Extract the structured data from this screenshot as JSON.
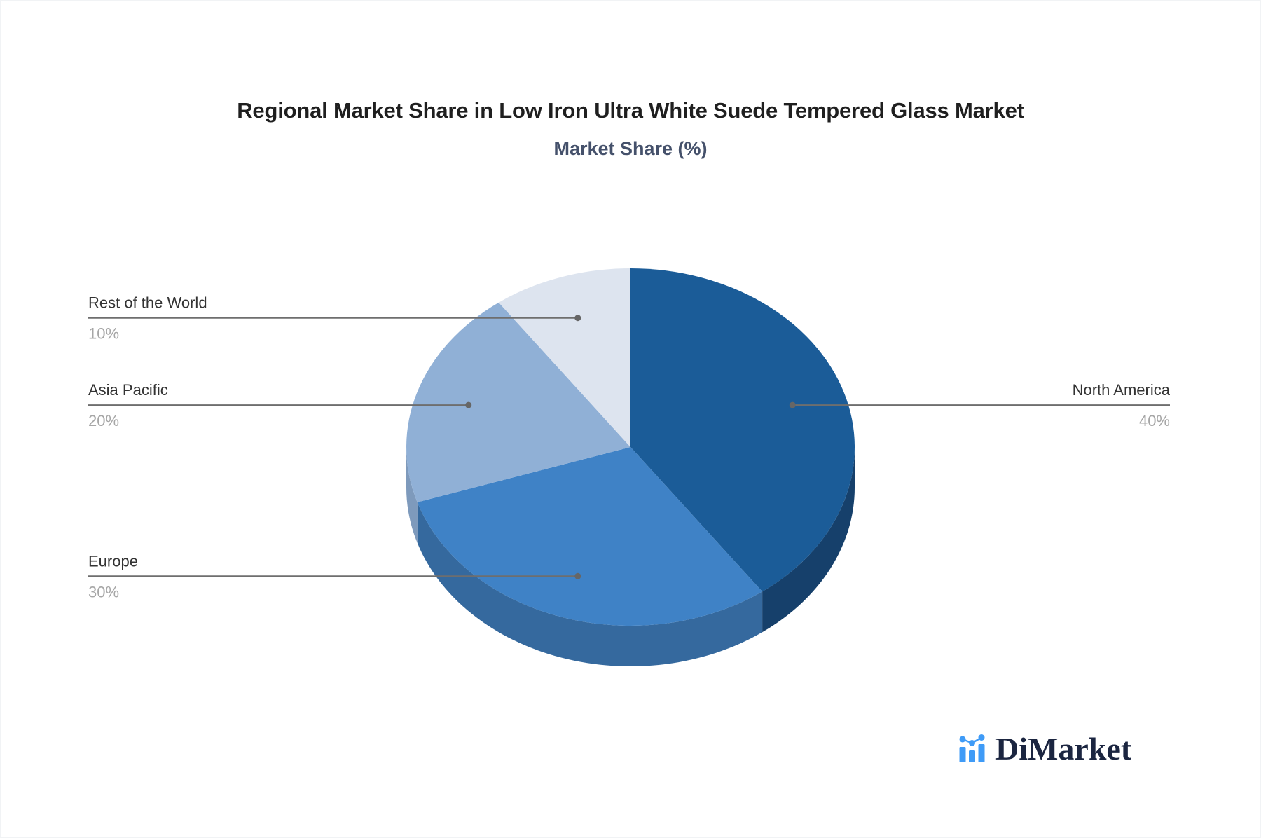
{
  "header": {
    "title": "Regional Market Share in Low Iron Ultra White Suede Tempered Glass Market",
    "subtitle": "Market Share (%)"
  },
  "chart_data": {
    "type": "pie",
    "title": "Market Share (%)",
    "unit": "%",
    "style": "3d-pie",
    "start_angle": "12-oclock",
    "direction": "clockwise",
    "legend_position": "none",
    "slices": [
      {
        "label": "North America",
        "value": 40,
        "display": "40%",
        "color": "#1b5c98",
        "side_color": "#16406b"
      },
      {
        "label": "Europe",
        "value": 30,
        "display": "30%",
        "color": "#3f82c6",
        "side_color": "#35699e"
      },
      {
        "label": "Asia Pacific",
        "value": 20,
        "display": "20%",
        "color": "#90b0d6",
        "side_color": "#7e9abc"
      },
      {
        "label": "Rest of the World",
        "value": 10,
        "display": "10%",
        "color": "#dde4ef",
        "side_color": "#c5cede"
      }
    ],
    "label_color": "#333333",
    "value_color": "#a6a6a6",
    "leader_line_color": "#6e6e6e",
    "leader_dot_color": "#666666"
  },
  "logo": {
    "text": "DiMarket",
    "icon": "bar-line-chart-icon",
    "icon_color": "#3f9bf7",
    "text_color": "#1b2540"
  }
}
